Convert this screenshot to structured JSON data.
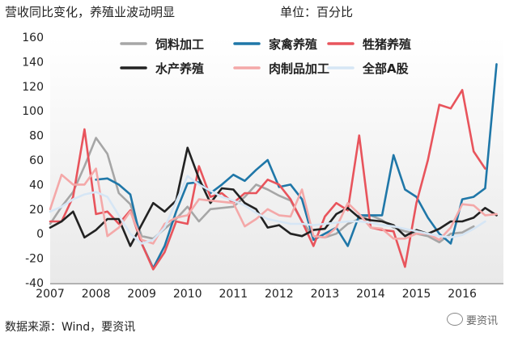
{
  "header": {
    "title": "营收同比变化，养殖业波动明显",
    "unit": "单位：百分比"
  },
  "footer": {
    "source": "数据来源：Wind，要资讯",
    "watermark": "要资讯"
  },
  "chart_data": {
    "type": "line",
    "title": "",
    "xlabel": "",
    "ylabel": "",
    "ylim": [
      -40,
      160
    ],
    "yticks": [
      -40,
      -20,
      0,
      20,
      40,
      60,
      80,
      100,
      120,
      140,
      160
    ],
    "xlim": [
      2007,
      2016.9
    ],
    "xticks": [
      2007,
      2008,
      2009,
      2010,
      2011,
      2012,
      2013,
      2014,
      2015,
      2016
    ],
    "grid": false,
    "legend_position": "top",
    "series": [
      {
        "name": "饲料加工",
        "color": "#a6a6a6",
        "points": [
          [
            2007.0,
            8
          ],
          [
            2007.25,
            22
          ],
          [
            2007.5,
            34
          ],
          [
            2007.75,
            55
          ],
          [
            2008.0,
            78
          ],
          [
            2008.25,
            65
          ],
          [
            2008.5,
            33
          ],
          [
            2008.75,
            24
          ],
          [
            2009.0,
            -2
          ],
          [
            2009.25,
            -4
          ],
          [
            2009.5,
            4
          ],
          [
            2009.75,
            12
          ],
          [
            2010.0,
            22
          ],
          [
            2010.25,
            10
          ],
          [
            2010.5,
            20
          ],
          [
            2010.75,
            21
          ],
          [
            2011.0,
            22
          ],
          [
            2011.25,
            30
          ],
          [
            2011.5,
            40
          ],
          [
            2011.75,
            36
          ],
          [
            2012.0,
            31
          ],
          [
            2012.25,
            27
          ],
          [
            2012.5,
            10
          ],
          [
            2012.75,
            -2
          ],
          [
            2013.0,
            -3
          ],
          [
            2013.25,
            0
          ],
          [
            2013.5,
            8
          ],
          [
            2013.75,
            12
          ],
          [
            2014.0,
            15
          ],
          [
            2014.25,
            11
          ],
          [
            2014.5,
            5
          ],
          [
            2014.75,
            2
          ],
          [
            2015.0,
            0
          ],
          [
            2015.25,
            -2
          ],
          [
            2015.5,
            -7
          ],
          [
            2015.75,
            0
          ],
          [
            2016.0,
            1
          ],
          [
            2016.25,
            6
          ]
        ]
      },
      {
        "name": "家禽养殖",
        "color": "#1f77a8",
        "points": [
          [
            2008.0,
            44
          ],
          [
            2008.25,
            45
          ],
          [
            2008.5,
            40
          ],
          [
            2008.75,
            32
          ],
          [
            2009.0,
            -8
          ],
          [
            2009.25,
            -28
          ],
          [
            2009.5,
            -10
          ],
          [
            2009.75,
            18
          ],
          [
            2010.0,
            41
          ],
          [
            2010.25,
            42
          ],
          [
            2010.5,
            33
          ],
          [
            2010.75,
            40
          ],
          [
            2011.0,
            48
          ],
          [
            2011.25,
            43
          ],
          [
            2011.5,
            52
          ],
          [
            2011.75,
            60
          ],
          [
            2012.0,
            38
          ],
          [
            2012.25,
            40
          ],
          [
            2012.5,
            28
          ],
          [
            2012.75,
            -5
          ],
          [
            2013.0,
            0
          ],
          [
            2013.25,
            5
          ],
          [
            2013.5,
            -10
          ],
          [
            2013.75,
            15
          ],
          [
            2014.0,
            15
          ],
          [
            2014.25,
            15
          ],
          [
            2014.5,
            64
          ],
          [
            2014.75,
            36
          ],
          [
            2015.0,
            30
          ],
          [
            2015.25,
            13
          ],
          [
            2015.5,
            0
          ],
          [
            2015.75,
            -8
          ],
          [
            2016.0,
            28
          ],
          [
            2016.25,
            30
          ],
          [
            2016.5,
            37
          ],
          [
            2016.75,
            138
          ]
        ]
      },
      {
        "name": "牲猪养殖",
        "color": "#e8545c",
        "points": [
          [
            2007.0,
            10
          ],
          [
            2007.25,
            10
          ],
          [
            2007.5,
            30
          ],
          [
            2007.75,
            85
          ],
          [
            2008.0,
            16
          ],
          [
            2008.25,
            18
          ],
          [
            2008.5,
            8
          ],
          [
            2008.75,
            19
          ],
          [
            2009.0,
            -8
          ],
          [
            2009.25,
            -29
          ],
          [
            2009.5,
            -15
          ],
          [
            2009.75,
            10
          ],
          [
            2010.0,
            8
          ],
          [
            2010.25,
            55
          ],
          [
            2010.5,
            30
          ],
          [
            2010.75,
            33
          ],
          [
            2011.0,
            25
          ],
          [
            2011.25,
            33
          ],
          [
            2011.5,
            33
          ],
          [
            2011.75,
            44
          ],
          [
            2012.0,
            40
          ],
          [
            2012.25,
            28
          ],
          [
            2012.5,
            10
          ],
          [
            2012.75,
            -10
          ],
          [
            2013.0,
            14
          ],
          [
            2013.25,
            25
          ],
          [
            2013.5,
            19
          ],
          [
            2013.75,
            80
          ],
          [
            2014.0,
            5
          ],
          [
            2014.25,
            3
          ],
          [
            2014.5,
            2
          ],
          [
            2014.75,
            -27
          ],
          [
            2015.0,
            25
          ],
          [
            2015.25,
            60
          ],
          [
            2015.5,
            105
          ],
          [
            2015.75,
            102
          ],
          [
            2016.0,
            117
          ],
          [
            2016.25,
            67
          ],
          [
            2016.5,
            53
          ]
        ]
      },
      {
        "name": "水产养殖",
        "color": "#222222",
        "points": [
          [
            2007.0,
            5
          ],
          [
            2007.25,
            10
          ],
          [
            2007.5,
            18
          ],
          [
            2007.75,
            -3
          ],
          [
            2008.0,
            3
          ],
          [
            2008.25,
            12
          ],
          [
            2008.5,
            12
          ],
          [
            2008.75,
            -10
          ],
          [
            2009.25,
            25
          ],
          [
            2009.5,
            18
          ],
          [
            2009.75,
            27
          ],
          [
            2010.0,
            70
          ],
          [
            2010.25,
            45
          ],
          [
            2010.5,
            25
          ],
          [
            2010.75,
            37
          ],
          [
            2011.0,
            36
          ],
          [
            2011.25,
            25
          ],
          [
            2011.5,
            20
          ],
          [
            2011.75,
            5
          ],
          [
            2012.0,
            7
          ],
          [
            2012.25,
            0
          ],
          [
            2012.5,
            -2
          ],
          [
            2012.75,
            3
          ],
          [
            2013.0,
            4
          ],
          [
            2013.25,
            16
          ],
          [
            2013.5,
            21
          ],
          [
            2013.75,
            13
          ],
          [
            2014.0,
            11
          ],
          [
            2014.25,
            10
          ],
          [
            2014.5,
            7
          ],
          [
            2014.75,
            -2
          ],
          [
            2015.0,
            3
          ],
          [
            2015.25,
            0
          ],
          [
            2015.5,
            4
          ],
          [
            2015.75,
            10
          ],
          [
            2016.0,
            10
          ],
          [
            2016.25,
            13
          ],
          [
            2016.5,
            21
          ],
          [
            2016.75,
            15
          ]
        ]
      },
      {
        "name": "肉制品加工",
        "color": "#f4a8a8",
        "points": [
          [
            2007.0,
            20
          ],
          [
            2007.25,
            48
          ],
          [
            2007.5,
            40
          ],
          [
            2007.75,
            40
          ],
          [
            2008.0,
            53
          ],
          [
            2008.25,
            -2
          ],
          [
            2008.5,
            5
          ],
          [
            2008.75,
            18
          ],
          [
            2009.0,
            -5
          ],
          [
            2009.25,
            -8
          ],
          [
            2009.5,
            8
          ],
          [
            2009.75,
            13
          ],
          [
            2010.0,
            15
          ],
          [
            2010.25,
            28
          ],
          [
            2010.5,
            27
          ],
          [
            2010.75,
            26
          ],
          [
            2011.0,
            25
          ],
          [
            2011.25,
            6
          ],
          [
            2011.5,
            12
          ],
          [
            2011.75,
            20
          ],
          [
            2012.0,
            15
          ],
          [
            2012.25,
            14
          ],
          [
            2012.5,
            36
          ],
          [
            2012.75,
            -2
          ],
          [
            2013.0,
            -3
          ],
          [
            2013.25,
            5
          ],
          [
            2013.5,
            25
          ],
          [
            2013.75,
            16
          ],
          [
            2014.0,
            5
          ],
          [
            2014.25,
            4
          ],
          [
            2014.5,
            -4
          ],
          [
            2014.75,
            -4
          ],
          [
            2015.0,
            0
          ],
          [
            2015.25,
            0
          ],
          [
            2015.5,
            -5
          ],
          [
            2015.75,
            5
          ],
          [
            2016.0,
            24
          ],
          [
            2016.25,
            23
          ],
          [
            2016.5,
            15
          ],
          [
            2016.75,
            16
          ]
        ]
      },
      {
        "name": "全部A股",
        "color": "#d6e6f5",
        "points": [
          [
            2007.0,
            18
          ],
          [
            2007.25,
            22
          ],
          [
            2007.5,
            28
          ],
          [
            2007.75,
            32
          ],
          [
            2008.0,
            34
          ],
          [
            2008.25,
            30
          ],
          [
            2008.5,
            15
          ],
          [
            2008.75,
            0
          ],
          [
            2009.0,
            -8
          ],
          [
            2009.25,
            -5
          ],
          [
            2009.5,
            5
          ],
          [
            2009.75,
            26
          ],
          [
            2010.0,
            47
          ],
          [
            2010.25,
            40
          ],
          [
            2010.5,
            35
          ],
          [
            2010.75,
            30
          ],
          [
            2011.0,
            27
          ],
          [
            2011.25,
            23
          ],
          [
            2011.5,
            17
          ],
          [
            2011.75,
            12
          ],
          [
            2012.0,
            10
          ],
          [
            2012.25,
            8
          ],
          [
            2012.5,
            8
          ],
          [
            2012.75,
            7
          ],
          [
            2013.0,
            8
          ],
          [
            2013.25,
            9
          ],
          [
            2013.5,
            10
          ],
          [
            2013.75,
            10
          ],
          [
            2014.0,
            9
          ],
          [
            2014.25,
            7
          ],
          [
            2014.5,
            6
          ],
          [
            2014.75,
            4
          ],
          [
            2015.0,
            2
          ],
          [
            2015.25,
            0
          ],
          [
            2015.5,
            -2
          ],
          [
            2015.75,
            -3
          ],
          [
            2016.0,
            -1
          ],
          [
            2016.25,
            4
          ],
          [
            2016.5,
            10
          ]
        ]
      }
    ]
  }
}
